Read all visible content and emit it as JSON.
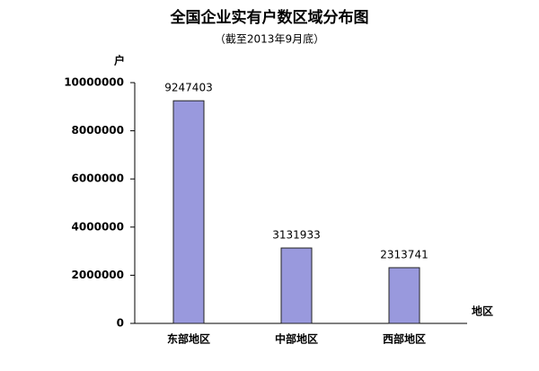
{
  "chart_data": {
    "type": "bar",
    "title": "全国企业实有户数区域分布图",
    "subtitle": "（截至2013年9月底）",
    "y_label": "户",
    "x_label": "地区",
    "categories": [
      "东部地区",
      "中部地区",
      "西部地区"
    ],
    "values": [
      9247403,
      3131933,
      2313741
    ],
    "color": "#9999dd",
    "ylim": [
      0,
      10000000
    ],
    "yticks": [
      0,
      2000000,
      4000000,
      6000000,
      8000000,
      10000000
    ]
  }
}
